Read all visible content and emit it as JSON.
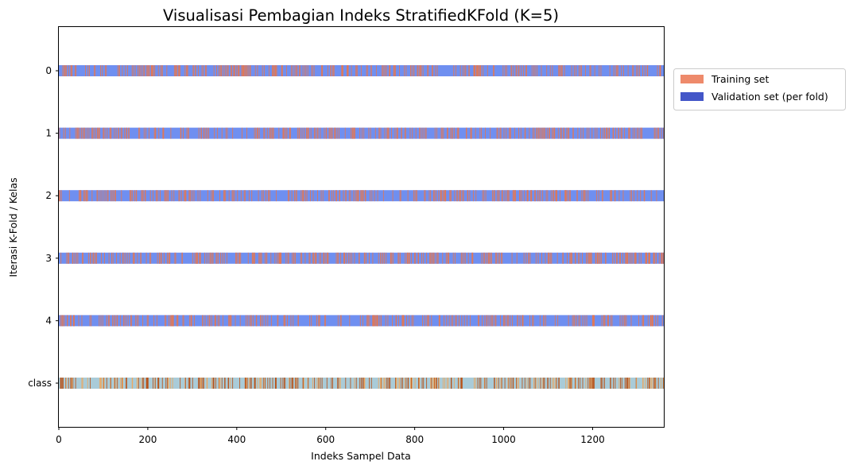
{
  "chart_data": {
    "type": "index-strip",
    "title": "Visualisasi Pembagian Indeks StratifiedKFold (K=5)",
    "xlabel": "Indeks Sampel Data",
    "ylabel": "Iterasi K-Fold / Kelas",
    "xlim": [
      0,
      1360
    ],
    "x_ticks": [
      0,
      200,
      400,
      600,
      800,
      1000,
      1200
    ],
    "rows": [
      "0",
      "1",
      "2",
      "3",
      "4",
      "class"
    ],
    "n_samples": 1360,
    "grid": false,
    "legend": {
      "placement": "outside-top-right",
      "entries": [
        {
          "label": "Training set",
          "color": "#ee8a6b"
        },
        {
          "label": "Validation set (per fold)",
          "color": "#4356c8"
        }
      ]
    },
    "colors": {
      "train_strip": "#6f8ff0",
      "validation_strip": "#e07858",
      "class_base": "#a9cbd8",
      "class_minority": "#b8541b",
      "class_alt": "#eda860"
    },
    "split": {
      "folds": 5,
      "validation_fraction_per_fold": 0.2
    }
  }
}
